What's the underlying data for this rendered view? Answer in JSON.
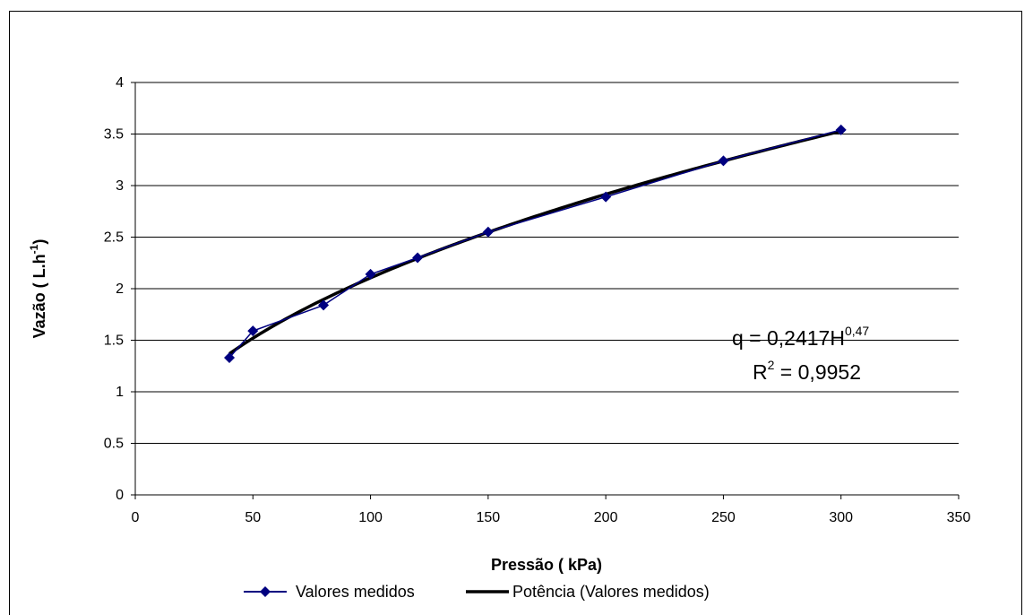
{
  "chart_data": {
    "type": "line",
    "xlabel": "Pressão ( kPa)",
    "ylabel": "Vazão ( L.h",
    "ylabel_sup": "-1",
    "ylabel_suffix": ")",
    "xlim": [
      0,
      350
    ],
    "ylim": [
      0,
      4
    ],
    "x_ticks": [
      "0",
      "50",
      "100",
      "150",
      "200",
      "250",
      "300",
      "350"
    ],
    "y_ticks": [
      "0",
      "0.5",
      "1",
      "1.5",
      "2",
      "2.5",
      "3",
      "3.5",
      "4"
    ],
    "grid": "horizontal",
    "legend_placement": "bottom",
    "series": [
      {
        "name": "Valores medidos",
        "color": "#000080",
        "marker": "diamond",
        "x": [
          40,
          50,
          80,
          100,
          120,
          150,
          200,
          250,
          300
        ],
        "y": [
          1.33,
          1.59,
          1.84,
          2.14,
          2.3,
          2.55,
          2.89,
          3.24,
          3.54
        ]
      },
      {
        "name": "Potência (Valores medidos)",
        "color": "#000000",
        "type": "power-trendline",
        "coefficient": 0.2417,
        "exponent": 0.47
      }
    ],
    "annotations": {
      "equation_main": "q = 0,2417H",
      "equation_sup": "0,47",
      "r2_main": "R",
      "r2_sup": "2",
      "r2_value": " = 0,9952"
    }
  }
}
